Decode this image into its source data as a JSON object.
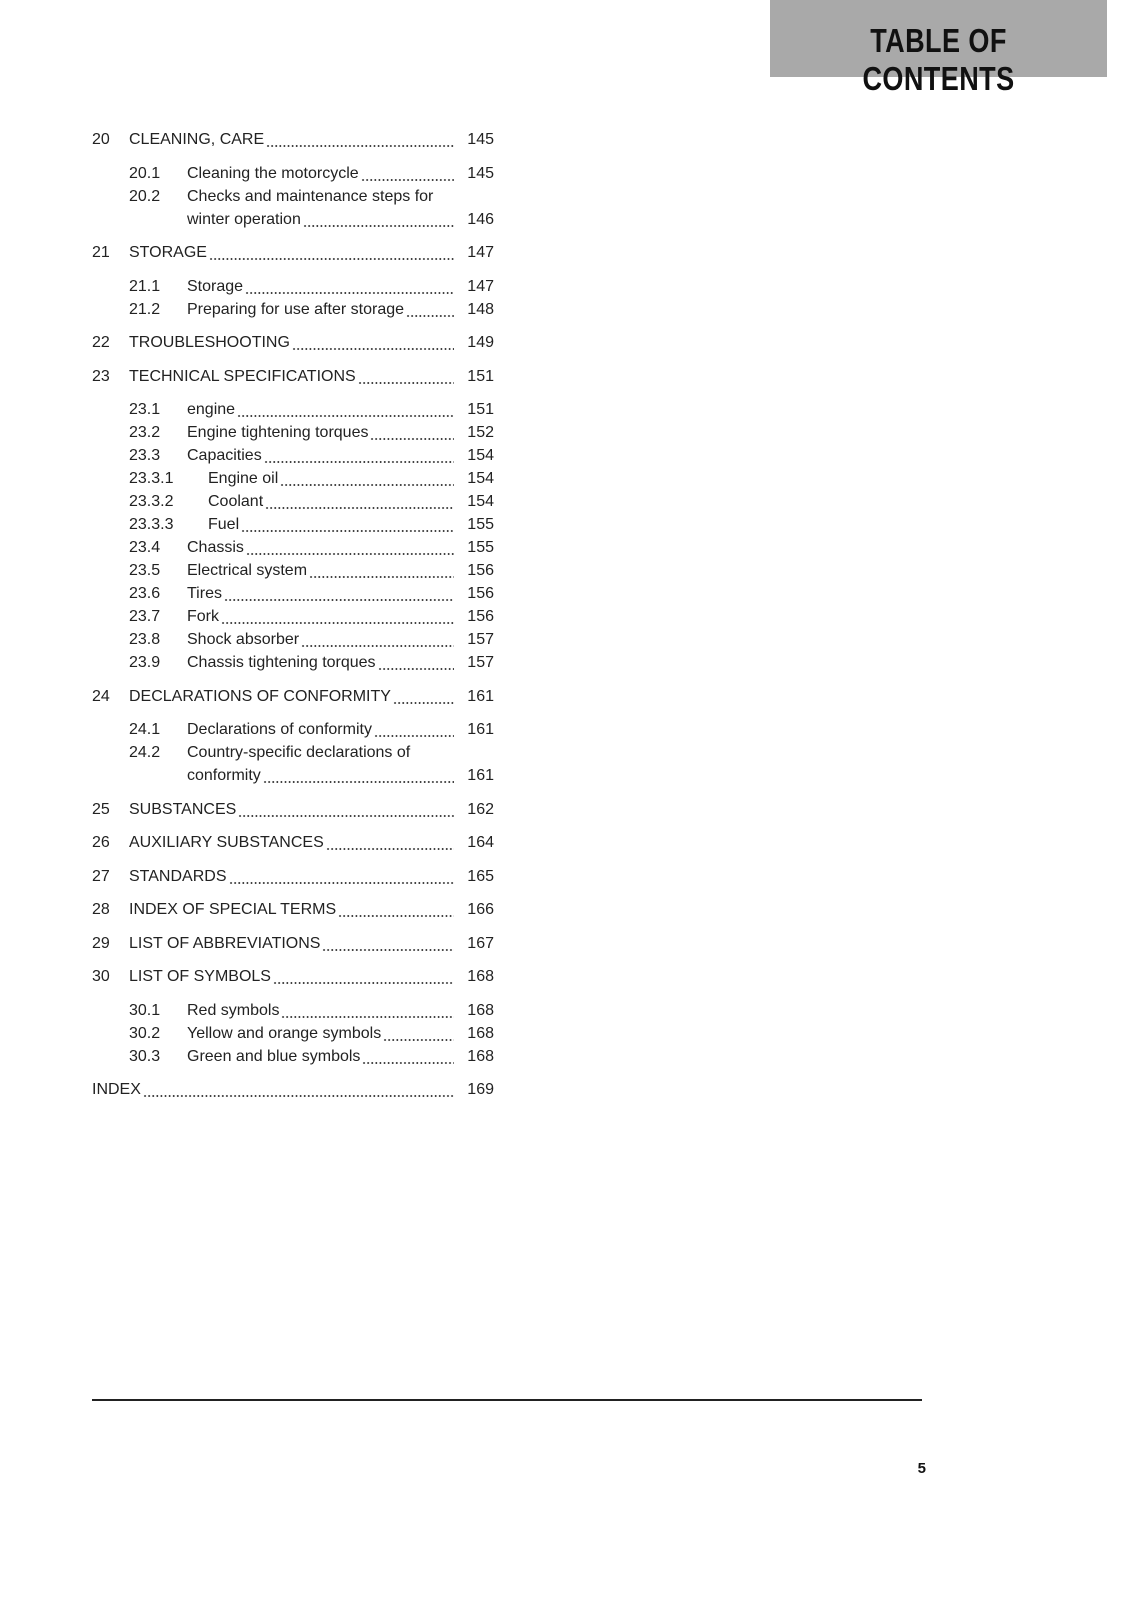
{
  "header": {
    "title": "TABLE OF CONTENTS",
    "background": "#a9a9a9"
  },
  "toc": [
    {
      "num": "20",
      "title": "CLEANING, CARE",
      "page": "145",
      "subs": [
        {
          "num": "20.1",
          "title": "Cleaning the motorcycle",
          "page": "145"
        },
        {
          "num": "20.2",
          "title": "Checks and maintenance steps for",
          "title_cont": "winter operation",
          "page": "146"
        }
      ]
    },
    {
      "num": "21",
      "title": "STORAGE",
      "page": "147",
      "subs": [
        {
          "num": "21.1",
          "title": "Storage",
          "page": "147"
        },
        {
          "num": "21.2",
          "title": "Preparing for use after storage",
          "page": "148"
        }
      ]
    },
    {
      "num": "22",
      "title": "TROUBLESHOOTING",
      "page": "149",
      "subs": []
    },
    {
      "num": "23",
      "title": "TECHNICAL SPECIFICATIONS",
      "page": "151",
      "subs": [
        {
          "num": "23.1",
          "title": "engine",
          "page": "151"
        },
        {
          "num": "23.2",
          "title": "Engine tightening torques",
          "page": "152"
        },
        {
          "num": "23.3",
          "title": "Capacities",
          "page": "154"
        },
        {
          "num": "23.3.1",
          "title": "Engine oil",
          "page": "154",
          "level": 3
        },
        {
          "num": "23.3.2",
          "title": "Coolant",
          "page": "154",
          "level": 3
        },
        {
          "num": "23.3.3",
          "title": "Fuel",
          "page": "155",
          "level": 3
        },
        {
          "num": "23.4",
          "title": "Chassis",
          "page": "155"
        },
        {
          "num": "23.5",
          "title": "Electrical system",
          "page": "156"
        },
        {
          "num": "23.6",
          "title": "Tires",
          "page": "156"
        },
        {
          "num": "23.7",
          "title": "Fork",
          "page": "156"
        },
        {
          "num": "23.8",
          "title": "Shock absorber",
          "page": "157"
        },
        {
          "num": "23.9",
          "title": "Chassis tightening torques",
          "page": "157"
        }
      ]
    },
    {
      "num": "24",
      "title": "DECLARATIONS OF CONFORMITY",
      "page": "161",
      "subs": [
        {
          "num": "24.1",
          "title": "Declarations of conformity",
          "page": "161"
        },
        {
          "num": "24.2",
          "title": "Country-specific declarations of",
          "title_cont": "conformity",
          "page": "161"
        }
      ]
    },
    {
      "num": "25",
      "title": "SUBSTANCES",
      "page": "162",
      "subs": []
    },
    {
      "num": "26",
      "title": "AUXILIARY SUBSTANCES",
      "page": "164",
      "subs": []
    },
    {
      "num": "27",
      "title": "STANDARDS",
      "page": "165",
      "subs": []
    },
    {
      "num": "28",
      "title": "INDEX OF SPECIAL TERMS",
      "page": "166",
      "subs": []
    },
    {
      "num": "29",
      "title": "LIST OF ABBREVIATIONS",
      "page": "167",
      "subs": []
    },
    {
      "num": "30",
      "title": "LIST OF SYMBOLS",
      "page": "168",
      "subs": [
        {
          "num": "30.1",
          "title": "Red symbols",
          "page": "168"
        },
        {
          "num": "30.2",
          "title": "Yellow and orange symbols",
          "page": "168"
        },
        {
          "num": "30.3",
          "title": "Green and blue symbols",
          "page": "168"
        }
      ]
    },
    {
      "num": "",
      "title": "INDEX",
      "page": "169",
      "subs": [],
      "index": true
    }
  ],
  "footer": {
    "page_number": "5"
  }
}
